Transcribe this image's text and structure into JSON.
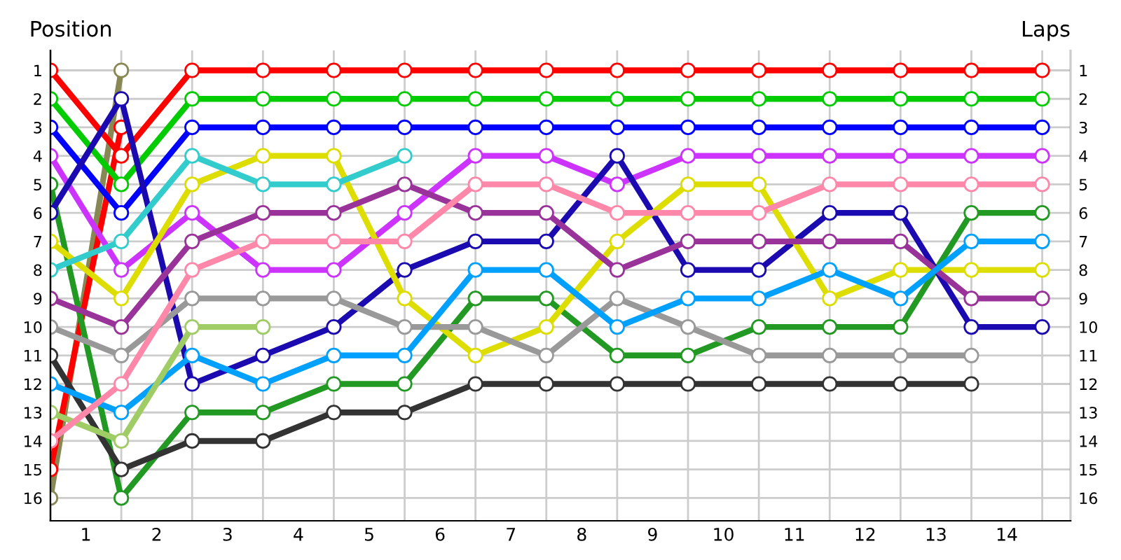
{
  "chart_data": {
    "type": "line",
    "xlabel": "Laps",
    "ylabel": "Position",
    "x": [
      0,
      1,
      2,
      3,
      4,
      5,
      6,
      7,
      8,
      9,
      10,
      11,
      12,
      13,
      14
    ],
    "series": [
      {
        "color": "#888855",
        "values": [
          16,
          1,
          null,
          null,
          null,
          null,
          null,
          null,
          null,
          null,
          null,
          null,
          null,
          null,
          null
        ]
      },
      {
        "color": "#ff0000",
        "values": [
          15,
          3,
          null,
          null,
          null,
          null,
          null,
          null,
          null,
          null,
          null,
          null,
          null,
          null,
          null
        ]
      },
      {
        "color": "#ff0000",
        "values": [
          1,
          4,
          1,
          1,
          1,
          1,
          1,
          1,
          1,
          1,
          1,
          1,
          1,
          1,
          1
        ]
      },
      {
        "color": "#00cc00",
        "values": [
          2,
          5,
          2,
          2,
          2,
          2,
          2,
          2,
          2,
          2,
          2,
          2,
          2,
          2,
          2
        ]
      },
      {
        "color": "#0000ff",
        "values": [
          3,
          6,
          3,
          3,
          3,
          3,
          3,
          3,
          3,
          3,
          3,
          3,
          3,
          3,
          3
        ]
      },
      {
        "color": "#cc33ff",
        "values": [
          4,
          8,
          6,
          8,
          8,
          6,
          4,
          4,
          5,
          4,
          4,
          4,
          4,
          4,
          4
        ]
      },
      {
        "color": "#229922",
        "values": [
          5,
          16,
          13,
          13,
          12,
          12,
          9,
          9,
          11,
          11,
          10,
          10,
          10,
          6,
          6
        ]
      },
      {
        "color": "#1a0ab0",
        "values": [
          6,
          2,
          12,
          11,
          10,
          8,
          7,
          7,
          4,
          8,
          8,
          6,
          6,
          10,
          10
        ]
      },
      {
        "color": "#dddd00",
        "values": [
          7,
          9,
          5,
          4,
          4,
          9,
          11,
          10,
          7,
          5,
          5,
          9,
          8,
          8,
          8
        ]
      },
      {
        "color": "#33cccc",
        "values": [
          8,
          7,
          4,
          5,
          5,
          4,
          null,
          null,
          null,
          null,
          null,
          null,
          null,
          null,
          null
        ]
      },
      {
        "color": "#993399",
        "values": [
          9,
          10,
          7,
          6,
          6,
          5,
          6,
          6,
          8,
          7,
          7,
          7,
          7,
          9,
          9
        ]
      },
      {
        "color": "#999999",
        "values": [
          10,
          11,
          9,
          9,
          9,
          10,
          10,
          11,
          9,
          10,
          11,
          11,
          11,
          11,
          null
        ]
      },
      {
        "color": "#333333",
        "values": [
          11,
          15,
          14,
          14,
          13,
          13,
          12,
          12,
          12,
          12,
          12,
          12,
          12,
          12,
          null
        ]
      },
      {
        "color": "#00a0ff",
        "values": [
          12,
          13,
          11,
          12,
          11,
          11,
          8,
          8,
          10,
          9,
          9,
          8,
          9,
          7,
          7
        ]
      },
      {
        "color": "#a0cc66",
        "values": [
          13,
          14,
          10,
          10,
          null,
          null,
          null,
          null,
          null,
          null,
          null,
          null,
          null,
          null,
          null
        ]
      },
      {
        "color": "#ff88aa",
        "values": [
          14,
          12,
          8,
          7,
          7,
          7,
          5,
          5,
          6,
          6,
          6,
          5,
          5,
          5,
          5
        ]
      }
    ],
    "xlim": [
      0,
      14.4
    ],
    "ylim": [
      16.8,
      0.3
    ],
    "xticks": [
      {
        "value": 0,
        "label": null
      },
      {
        "value": 1,
        "label": null
      },
      {
        "value": 2,
        "label": null
      },
      {
        "value": 3,
        "label": null
      },
      {
        "value": 4,
        "label": null
      },
      {
        "value": 5,
        "label": null
      },
      {
        "value": 6,
        "label": null
      },
      {
        "value": 7,
        "label": null
      },
      {
        "value": 8,
        "label": null
      },
      {
        "value": 9,
        "label": null
      },
      {
        "value": 10,
        "label": null
      },
      {
        "value": 11,
        "label": null
      },
      {
        "value": 12,
        "label": null
      },
      {
        "value": 13,
        "label": null
      },
      {
        "value": 14,
        "label": null
      },
      {
        "value": 0.5,
        "label": "1"
      },
      {
        "value": 1.5,
        "label": "2"
      },
      {
        "value": 2.5,
        "label": "3"
      },
      {
        "value": 3.5,
        "label": "4"
      },
      {
        "value": 4.5,
        "label": "5"
      },
      {
        "value": 5.5,
        "label": "6"
      },
      {
        "value": 6.5,
        "label": "7"
      },
      {
        "value": 7.5,
        "label": "8"
      },
      {
        "value": 8.5,
        "label": "9"
      },
      {
        "value": 9.5,
        "label": "10"
      },
      {
        "value": 10.5,
        "label": "11"
      },
      {
        "value": 11.5,
        "label": "12"
      },
      {
        "value": 12.5,
        "label": "13"
      },
      {
        "value": 13.5,
        "label": "14"
      }
    ],
    "yticks": [
      1,
      2,
      3,
      4,
      5,
      6,
      7,
      8,
      9,
      10,
      11,
      12,
      13,
      14,
      15,
      16
    ],
    "y2lim": [
      16.8,
      0.3
    ],
    "y2ticks": [
      1,
      2,
      3,
      4,
      5,
      6,
      7,
      8,
      9,
      10,
      11,
      12,
      13,
      14,
      15,
      16
    ],
    "grid": true,
    "legend": false,
    "marker": "circle",
    "line_style": "solid"
  }
}
